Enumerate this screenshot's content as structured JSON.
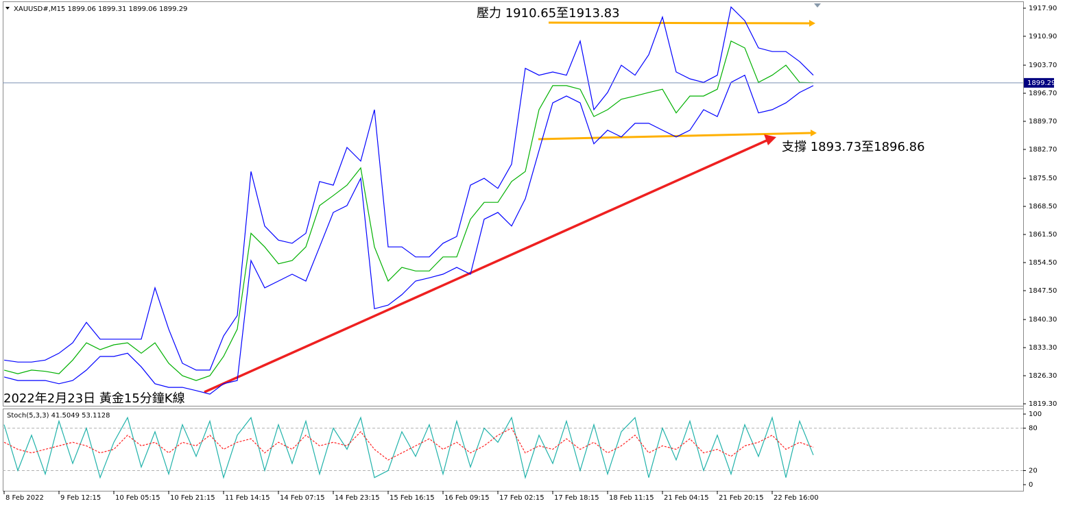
{
  "chart_data": [
    {
      "type": "line",
      "title": "XAUUSD#,M15  1899.06 1899.31 1899.06 1899.29",
      "annotations": [
        "壓力 1910.65至1913.83",
        "支撐 1893.73至1896.86",
        "2022年2月23日 黃金15分鐘K線"
      ],
      "x": [
        0,
        16,
        32,
        48,
        64,
        80,
        96,
        112,
        128,
        144,
        160,
        176,
        192,
        208,
        224,
        240,
        256,
        272,
        288,
        304,
        320,
        336,
        352,
        368,
        384,
        400,
        416,
        432,
        448,
        464,
        480,
        496,
        512,
        528,
        544,
        560,
        576,
        592,
        608,
        624,
        640,
        656,
        672,
        688,
        704,
        720,
        736,
        752,
        768,
        784,
        800,
        816,
        832,
        848,
        864,
        880,
        896,
        912,
        928,
        944
      ],
      "xlim": [
        -1.6,
        1188.8
      ],
      "ylim": [
        1818.8,
        1919.6
      ],
      "yticks": [
        {
          "value": 1917.9,
          "label": "1917.90"
        },
        {
          "value": 1910.9,
          "label": "1910.90"
        },
        {
          "value": 1903.7,
          "label": "1903.70"
        },
        {
          "value": 1896.7,
          "label": "1896.70"
        },
        {
          "value": 1889.7,
          "label": "1889.70"
        },
        {
          "value": 1882.7,
          "label": "1882.70"
        },
        {
          "value": 1875.5,
          "label": "1875.50"
        },
        {
          "value": 1868.5,
          "label": "1868.50"
        },
        {
          "value": 1861.5,
          "label": "1861.50"
        },
        {
          "value": 1854.5,
          "label": "1854.50"
        },
        {
          "value": 1847.5,
          "label": "1847.50"
        },
        {
          "value": 1840.3,
          "label": "1840.30"
        },
        {
          "value": 1833.3,
          "label": "1833.30"
        },
        {
          "value": 1826.3,
          "label": "1826.30"
        },
        {
          "value": 1819.3,
          "label": "1819.30"
        }
      ],
      "current_price": 1899.29,
      "series": [
        {
          "color": "#0000ff",
          "values": [
            1830.2,
            1829.7,
            1829.7,
            1830.2,
            1831.9,
            1834.5,
            1839.6,
            1835.4,
            1835.4,
            1835.4,
            1835.4,
            1848.2,
            1837.9,
            1829.4,
            1827.7,
            1827.7,
            1836.2,
            1841.3,
            1877.2,
            1863.6,
            1860.1,
            1859.3,
            1861.8,
            1874.7,
            1873.8,
            1883.2,
            1879.8,
            1892.6,
            1858.4,
            1858.4,
            1855.9,
            1855.9,
            1859.3,
            1861.0,
            1873.8,
            1875.5,
            1873.0,
            1879.0,
            1902.9,
            1901.2,
            1902.0,
            1901.2,
            1909.7,
            1892.6,
            1896.9,
            1903.7,
            1901.2,
            1906.3,
            1915.7,
            1902.0,
            1900.3,
            1899.4,
            1901.2,
            1918.2,
            1914.8,
            1908.0,
            1907.1,
            1907.1,
            1904.6,
            1901.2
          ]
        },
        {
          "color": "#00b000",
          "values": [
            1827.7,
            1826.8,
            1827.7,
            1827.4,
            1826.8,
            1830.2,
            1834.5,
            1832.8,
            1834.0,
            1834.5,
            1831.9,
            1834.5,
            1829.4,
            1826.3,
            1825.1,
            1826.3,
            1831.1,
            1837.9,
            1861.8,
            1858.4,
            1854.2,
            1855.0,
            1858.4,
            1868.7,
            1871.2,
            1873.8,
            1878.1,
            1858.4,
            1849.9,
            1853.3,
            1852.4,
            1852.4,
            1855.9,
            1855.9,
            1865.3,
            1869.5,
            1869.5,
            1874.7,
            1877.2,
            1892.6,
            1898.6,
            1898.6,
            1897.7,
            1890.9,
            1892.6,
            1895.2,
            1896.0,
            1896.9,
            1897.7,
            1891.8,
            1896.0,
            1896.0,
            1897.7,
            1909.7,
            1908.0,
            1899.4,
            1901.2,
            1903.7,
            1899.4,
            1899.3
          ]
        },
        {
          "color": "#0000ff",
          "values": [
            1826.0,
            1825.1,
            1825.1,
            1825.1,
            1824.3,
            1825.1,
            1827.7,
            1831.1,
            1831.1,
            1831.9,
            1828.5,
            1824.3,
            1823.4,
            1823.4,
            1822.6,
            1821.7,
            1824.3,
            1825.1,
            1855.0,
            1848.2,
            1849.9,
            1851.6,
            1849.9,
            1858.4,
            1867.0,
            1868.7,
            1875.5,
            1843.0,
            1843.9,
            1846.5,
            1849.9,
            1850.7,
            1851.6,
            1853.3,
            1851.6,
            1865.3,
            1867.0,
            1863.6,
            1870.4,
            1882.4,
            1894.3,
            1896.0,
            1894.3,
            1884.1,
            1887.5,
            1885.8,
            1889.2,
            1889.2,
            1887.5,
            1885.8,
            1887.5,
            1892.6,
            1890.9,
            1899.4,
            1901.2,
            1891.8,
            1892.6,
            1894.3,
            1896.9,
            1898.6
          ]
        }
      ]
    },
    {
      "type": "line",
      "title": "Stoch(5,3,3) 41.5049 53.1128",
      "x": [
        0,
        16,
        32,
        48,
        64,
        80,
        96,
        112,
        128,
        144,
        160,
        176,
        192,
        208,
        224,
        240,
        256,
        272,
        288,
        304,
        320,
        336,
        352,
        368,
        384,
        400,
        416,
        432,
        448,
        464,
        480,
        496,
        512,
        528,
        544,
        560,
        576,
        592,
        608,
        624,
        640,
        656,
        672,
        688,
        704,
        720,
        736,
        752,
        768,
        784,
        800,
        816,
        832,
        848,
        864,
        880,
        896,
        912,
        928,
        944
      ],
      "xlim": [
        -1.6,
        1188.8
      ],
      "xticks": [
        {
          "value": 0,
          "label": "8 Feb 2022"
        },
        {
          "value": 64,
          "label": "9 Feb 12:15"
        },
        {
          "value": 128,
          "label": "10 Feb 05:15"
        },
        {
          "value": 192,
          "label": "10 Feb 21:15"
        },
        {
          "value": 256,
          "label": "11 Feb 14:15"
        },
        {
          "value": 320,
          "label": "14 Feb 07:15"
        },
        {
          "value": 384,
          "label": "14 Feb 23:15"
        },
        {
          "value": 448,
          "label": "15 Feb 16:15"
        },
        {
          "value": 512,
          "label": "16 Feb 09:15"
        },
        {
          "value": 576,
          "label": "17 Feb 02:15"
        },
        {
          "value": 640,
          "label": "17 Feb 18:15"
        },
        {
          "value": 704,
          "label": "18 Feb 11:15"
        },
        {
          "value": 768,
          "label": "21 Feb 04:15"
        },
        {
          "value": 832,
          "label": "21 Feb 20:15"
        },
        {
          "value": 896,
          "label": "22 Feb 16:00"
        }
      ],
      "ylim": [
        -8.7,
        107.8
      ],
      "yticks": [
        100,
        80,
        20,
        0
      ],
      "levels": [
        80,
        20
      ],
      "series": [
        {
          "color": "#20b2aa",
          "dashed": false,
          "values": [
            85,
            20,
            70,
            15,
            90,
            30,
            80,
            10,
            60,
            95,
            25,
            75,
            15,
            85,
            40,
            90,
            10,
            70,
            95,
            20,
            85,
            30,
            90,
            15,
            80,
            50,
            95,
            10,
            20,
            75,
            40,
            85,
            15,
            90,
            25,
            80,
            60,
            95,
            10,
            70,
            30,
            90,
            20,
            85,
            15,
            75,
            95,
            10,
            80,
            35,
            90,
            20,
            70,
            15,
            85,
            40,
            95,
            10,
            90,
            42
          ]
        },
        {
          "color": "#ff2020",
          "dashed": true,
          "values": [
            60,
            50,
            45,
            50,
            55,
            60,
            55,
            45,
            50,
            70,
            55,
            60,
            45,
            60,
            55,
            70,
            50,
            60,
            65,
            45,
            60,
            50,
            70,
            55,
            60,
            55,
            75,
            50,
            35,
            45,
            55,
            65,
            50,
            60,
            45,
            55,
            70,
            80,
            45,
            55,
            50,
            65,
            50,
            60,
            45,
            55,
            70,
            45,
            55,
            50,
            65,
            45,
            50,
            40,
            55,
            60,
            70,
            50,
            60,
            53
          ]
        }
      ]
    }
  ]
}
